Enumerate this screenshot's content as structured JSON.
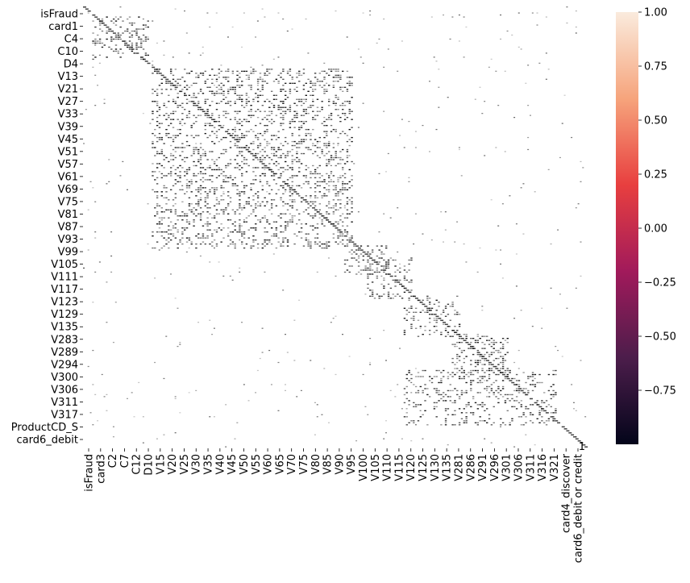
{
  "chart_data": {
    "type": "heatmap",
    "title": "",
    "xlabel": "",
    "ylabel": "",
    "y_tick_labels": [
      "isFraud",
      "card1",
      "C4",
      "C10",
      "D4",
      "V13",
      "V21",
      "V27",
      "V33",
      "V39",
      "V45",
      "V51",
      "V57",
      "V61",
      "V69",
      "V75",
      "V81",
      "V87",
      "V93",
      "V99",
      "V105",
      "V111",
      "V117",
      "V123",
      "V129",
      "V135",
      "V283",
      "V289",
      "V294",
      "V300",
      "V306",
      "V311",
      "V317",
      "ProductCD_S",
      "card6_debit"
    ],
    "x_tick_labels": [
      "isFraud",
      "card3",
      "C2",
      "C7",
      "C12",
      "D10",
      "V15",
      "V20",
      "V25",
      "V30",
      "V35",
      "V40",
      "V45",
      "V50",
      "V55",
      "V60",
      "V65",
      "V70",
      "V75",
      "V80",
      "V85",
      "V90",
      "V95",
      "V100",
      "V105",
      "V110",
      "V115",
      "V120",
      "V125",
      "V130",
      "V135",
      "V281",
      "V286",
      "V291",
      "V296",
      "V301",
      "V306",
      "V311",
      "V316",
      "V321",
      "card4_discover",
      "card6_debit or credit"
    ],
    "colorbar": {
      "vmin": -1.0,
      "vmax": 1.0,
      "ticks": [
        "1.00",
        "0.75",
        "0.50",
        "0.25",
        "0.00",
        "−0.25",
        "−0.50",
        "−0.75"
      ],
      "tick_values": [
        1.0,
        0.75,
        0.5,
        0.25,
        0.0,
        -0.25,
        -0.5,
        -0.75
      ],
      "colormap": "rocket",
      "colors": [
        "#03051a",
        "#4c1d4b",
        "#a11a5b",
        "#e83f3f",
        "#f6a47c",
        "#faebdd"
      ]
    },
    "diagonal_value": 1.0,
    "stray_cell_label": "1",
    "annotation_color": "#000000",
    "correlated_blocks": [
      {
        "rows": [
          "card1",
          "C10"
        ],
        "cols": [
          "card3",
          "C12"
        ],
        "strength": 0.9
      },
      {
        "rows": [
          "V13",
          "V93"
        ],
        "cols": [
          "V15",
          "V90"
        ],
        "strength": 0.85
      },
      {
        "rows": [
          "V99",
          "V105"
        ],
        "cols": [
          "V95",
          "V105"
        ],
        "strength": 0.75
      },
      {
        "rows": [
          "V105",
          "V117"
        ],
        "cols": [
          "V105",
          "V115"
        ],
        "strength": 0.85
      },
      {
        "rows": [
          "V123",
          "V135"
        ],
        "cols": [
          "V120",
          "V135"
        ],
        "strength": 0.8
      },
      {
        "rows": [
          "V283",
          "V294"
        ],
        "cols": [
          "V281",
          "V296"
        ],
        "strength": 0.85
      },
      {
        "rows": [
          "V300",
          "V317"
        ],
        "cols": [
          "V120",
          "V316"
        ],
        "strength": 0.7
      }
    ]
  }
}
